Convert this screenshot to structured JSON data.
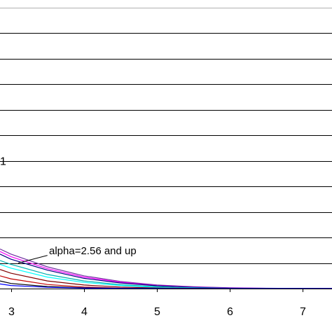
{
  "chart_data": {
    "type": "line",
    "xlim": [
      2.85,
      7.4
    ],
    "ylim": [
      0,
      11.3
    ],
    "x_ticks": [
      "3",
      "4",
      "5",
      "6",
      "7"
    ],
    "x_tick_values": [
      3,
      4,
      5,
      6,
      7
    ],
    "gridlines_y": [
      1,
      2,
      3,
      4,
      5,
      6,
      7,
      8,
      9,
      10,
      11
    ],
    "grid": true,
    "partial_label": "1",
    "annotation": {
      "text": "alpha=2.56 and up",
      "arrow_from": [
        3.5,
        1.3
      ],
      "arrow_to": [
        3.1,
        1.0
      ]
    },
    "series": [
      {
        "color": "#7030a0",
        "values": [
          [
            2.85,
            1.55
          ],
          [
            3.0,
            1.35
          ],
          [
            3.5,
            0.85
          ],
          [
            4.0,
            0.5
          ],
          [
            4.5,
            0.28
          ],
          [
            5.0,
            0.14
          ],
          [
            5.5,
            0.07
          ],
          [
            6.0,
            0.03
          ],
          [
            6.5,
            0.015
          ],
          [
            7.0,
            0.005
          ],
          [
            7.4,
            0.0
          ]
        ]
      },
      {
        "color": "#ff00ff",
        "values": [
          [
            2.85,
            1.45
          ],
          [
            3.0,
            1.25
          ],
          [
            3.5,
            0.78
          ],
          [
            4.0,
            0.45
          ],
          [
            4.5,
            0.25
          ],
          [
            5.0,
            0.12
          ],
          [
            5.5,
            0.06
          ],
          [
            6.0,
            0.025
          ],
          [
            6.5,
            0.01
          ],
          [
            7.0,
            0.004
          ],
          [
            7.4,
            0.0
          ]
        ]
      },
      {
        "color": "#000080",
        "values": [
          [
            2.85,
            1.35
          ],
          [
            3.0,
            1.15
          ],
          [
            3.5,
            0.72
          ],
          [
            4.0,
            0.4
          ],
          [
            4.5,
            0.22
          ],
          [
            5.0,
            0.11
          ],
          [
            5.5,
            0.05
          ],
          [
            6.0,
            0.02
          ],
          [
            6.5,
            0.008
          ],
          [
            7.0,
            0.003
          ],
          [
            7.4,
            0.0
          ]
        ]
      },
      {
        "color": "#00b0b0",
        "values": [
          [
            2.85,
            1.1
          ],
          [
            3.0,
            0.95
          ],
          [
            3.5,
            0.55
          ],
          [
            4.0,
            0.3
          ],
          [
            4.5,
            0.15
          ],
          [
            5.0,
            0.07
          ],
          [
            5.5,
            0.03
          ],
          [
            6.0,
            0.012
          ],
          [
            6.5,
            0.005
          ],
          [
            7.0,
            0.002
          ],
          [
            7.4,
            0.0
          ]
        ]
      },
      {
        "color": "#00ffff",
        "values": [
          [
            2.85,
            0.95
          ],
          [
            3.0,
            0.8
          ],
          [
            3.5,
            0.45
          ],
          [
            4.0,
            0.24
          ],
          [
            4.5,
            0.12
          ],
          [
            5.0,
            0.05
          ],
          [
            5.5,
            0.02
          ],
          [
            6.0,
            0.008
          ],
          [
            6.5,
            0.003
          ],
          [
            7.0,
            0.001
          ],
          [
            7.4,
            0.0
          ]
        ]
      },
      {
        "color": "#800000",
        "values": [
          [
            2.85,
            0.75
          ],
          [
            3.0,
            0.6
          ],
          [
            3.5,
            0.3
          ],
          [
            4.0,
            0.14
          ],
          [
            4.5,
            0.06
          ],
          [
            5.0,
            0.025
          ],
          [
            5.5,
            0.01
          ],
          [
            6.0,
            0.004
          ],
          [
            6.5,
            0.001
          ],
          [
            7.0,
            0.0
          ],
          [
            7.4,
            0.0
          ]
        ]
      },
      {
        "color": "#c00000",
        "values": [
          [
            2.85,
            0.5
          ],
          [
            3.0,
            0.38
          ],
          [
            3.5,
            0.16
          ],
          [
            4.0,
            0.06
          ],
          [
            4.5,
            0.02
          ],
          [
            5.0,
            0.008
          ],
          [
            5.5,
            0.003
          ],
          [
            6.0,
            0.001
          ],
          [
            6.5,
            0.0
          ],
          [
            7.0,
            0.0
          ],
          [
            7.4,
            0.0
          ]
        ]
      },
      {
        "color": "#000000",
        "values": [
          [
            2.85,
            0.3
          ],
          [
            3.0,
            0.2
          ],
          [
            3.5,
            0.08
          ],
          [
            4.0,
            0.03
          ],
          [
            4.5,
            0.01
          ],
          [
            5.0,
            0.004
          ],
          [
            5.5,
            0.001
          ],
          [
            6.0,
            0.0
          ],
          [
            6.5,
            0.0
          ],
          [
            7.0,
            0.0
          ],
          [
            7.4,
            0.0
          ]
        ]
      },
      {
        "color": "#0000ff",
        "values": [
          [
            2.85,
            0.18
          ],
          [
            3.0,
            0.12
          ],
          [
            3.5,
            0.05
          ],
          [
            4.0,
            0.02
          ],
          [
            4.5,
            0.008
          ],
          [
            5.0,
            0.003
          ],
          [
            5.5,
            0.001
          ],
          [
            6.0,
            0.0
          ],
          [
            6.5,
            0.0
          ],
          [
            7.0,
            0.0
          ],
          [
            7.4,
            0.0
          ]
        ]
      }
    ]
  }
}
